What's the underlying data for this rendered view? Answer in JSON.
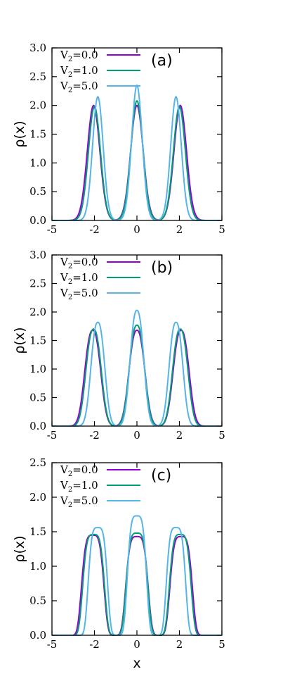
{
  "chart_data": [
    {
      "type": "line",
      "panel_label": "(a)",
      "xlabel": "",
      "ylabel": "ρ(x)",
      "xlim": [
        -5,
        5
      ],
      "ylim": [
        0,
        3.0
      ],
      "xticks": [
        "-5",
        "-2",
        "0",
        "2",
        "5"
      ],
      "yticks": [
        "0.0",
        "0.5",
        "1.0",
        "1.5",
        "2.0",
        "2.5",
        "3.0"
      ],
      "legend_position": "top-left",
      "series": [
        {
          "name": "V2=0.0",
          "legend_main": "V",
          "legend_sub": "2",
          "legend_rest": "=0.0",
          "color": "#9400d3",
          "peaks": [
            {
              "x": -2.55,
              "y": 2.0,
              "w": 0.52,
              "e": 2.0
            },
            {
              "x": 0.0,
              "y": 2.0,
              "w": 0.52,
              "e": 2.0
            },
            {
              "x": 2.55,
              "y": 2.0,
              "w": 0.52,
              "e": 2.0
            }
          ]
        },
        {
          "name": "V2=1.0",
          "legend_main": "V",
          "legend_sub": "2",
          "legend_rest": "=1.0",
          "color": "#009e73",
          "peaks": [
            {
              "x": -2.5,
              "y": 1.98,
              "w": 0.5,
              "e": 2.0
            },
            {
              "x": 0.0,
              "y": 2.08,
              "w": 0.5,
              "e": 2.0
            },
            {
              "x": 2.5,
              "y": 1.98,
              "w": 0.5,
              "e": 2.0
            }
          ]
        },
        {
          "name": "V2=5.0",
          "legend_main": "V",
          "legend_sub": "2",
          "legend_rest": "=5.0",
          "color": "#56b4e9",
          "peaks": [
            {
              "x": -2.3,
              "y": 2.15,
              "w": 0.44,
              "e": 2.0
            },
            {
              "x": 0.0,
              "y": 2.35,
              "w": 0.44,
              "e": 2.0
            },
            {
              "x": 2.3,
              "y": 2.15,
              "w": 0.44,
              "e": 2.0
            }
          ]
        }
      ]
    },
    {
      "type": "line",
      "panel_label": "(b)",
      "xlabel": "",
      "ylabel": "ρ(x)",
      "xlim": [
        -5,
        5
      ],
      "ylim": [
        0,
        3.0
      ],
      "xticks": [
        "-5",
        "-2",
        "0",
        "2",
        "5"
      ],
      "yticks": [
        "0.0",
        "0.5",
        "1.0",
        "1.5",
        "2.0",
        "2.5",
        "3.0"
      ],
      "legend_position": "top-left",
      "series": [
        {
          "name": "V2=0.0",
          "legend_main": "V",
          "legend_sub": "2",
          "legend_rest": "=0.0",
          "color": "#9400d3",
          "peaks": [
            {
              "x": -2.6,
              "y": 1.68,
              "w": 0.6,
              "e": 2.4
            },
            {
              "x": 0.0,
              "y": 1.68,
              "w": 0.6,
              "e": 2.4
            },
            {
              "x": 2.6,
              "y": 1.68,
              "w": 0.6,
              "e": 2.4
            }
          ]
        },
        {
          "name": "V2=1.0",
          "legend_main": "V",
          "legend_sub": "2",
          "legend_rest": "=1.0",
          "color": "#009e73",
          "peaks": [
            {
              "x": -2.55,
              "y": 1.7,
              "w": 0.58,
              "e": 2.4
            },
            {
              "x": 0.0,
              "y": 1.77,
              "w": 0.58,
              "e": 2.4
            },
            {
              "x": 2.55,
              "y": 1.7,
              "w": 0.58,
              "e": 2.4
            }
          ]
        },
        {
          "name": "V2=5.0",
          "legend_main": "V",
          "legend_sub": "2",
          "legend_rest": "=5.0",
          "color": "#56b4e9",
          "peaks": [
            {
              "x": -2.3,
              "y": 1.82,
              "w": 0.52,
              "e": 2.4
            },
            {
              "x": 0.0,
              "y": 2.03,
              "w": 0.52,
              "e": 2.4
            },
            {
              "x": 2.3,
              "y": 1.82,
              "w": 0.52,
              "e": 2.4
            }
          ]
        }
      ]
    },
    {
      "type": "line",
      "panel_label": "(c)",
      "xlabel": "x",
      "ylabel": "ρ(x)",
      "xlim": [
        -5,
        5
      ],
      "ylim": [
        0,
        2.5
      ],
      "xticks": [
        "-5",
        "-2",
        "0",
        "2",
        "5"
      ],
      "yticks": [
        "0.0",
        "0.5",
        "1.0",
        "1.5",
        "2.0",
        "2.5"
      ],
      "legend_position": "top-left",
      "series": [
        {
          "name": "V2=0.0",
          "legend_main": "V",
          "legend_sub": "2",
          "legend_rest": "=0.0",
          "color": "#9400d3",
          "peaks": [
            {
              "x": -2.6,
              "y": 1.45,
              "w": 0.72,
              "e": 4.0
            },
            {
              "x": 0.0,
              "y": 1.43,
              "w": 0.72,
              "e": 4.0
            },
            {
              "x": 2.6,
              "y": 1.43,
              "w": 0.72,
              "e": 4.0
            }
          ]
        },
        {
          "name": "V2=1.0",
          "legend_main": "V",
          "legend_sub": "2",
          "legend_rest": "=1.0",
          "color": "#009e73",
          "peaks": [
            {
              "x": -2.55,
              "y": 1.46,
              "w": 0.7,
              "e": 4.0
            },
            {
              "x": 0.0,
              "y": 1.48,
              "w": 0.7,
              "e": 4.0
            },
            {
              "x": 2.55,
              "y": 1.46,
              "w": 0.7,
              "e": 4.0
            }
          ]
        },
        {
          "name": "V2=5.0",
          "legend_main": "V",
          "legend_sub": "2",
          "legend_rest": "=5.0",
          "color": "#56b4e9",
          "peaks": [
            {
              "x": -2.3,
              "y": 1.56,
              "w": 0.62,
              "e": 4.0
            },
            {
              "x": 0.0,
              "y": 1.73,
              "w": 0.62,
              "e": 4.0
            },
            {
              "x": 2.3,
              "y": 1.56,
              "w": 0.62,
              "e": 4.0
            }
          ]
        }
      ]
    }
  ]
}
